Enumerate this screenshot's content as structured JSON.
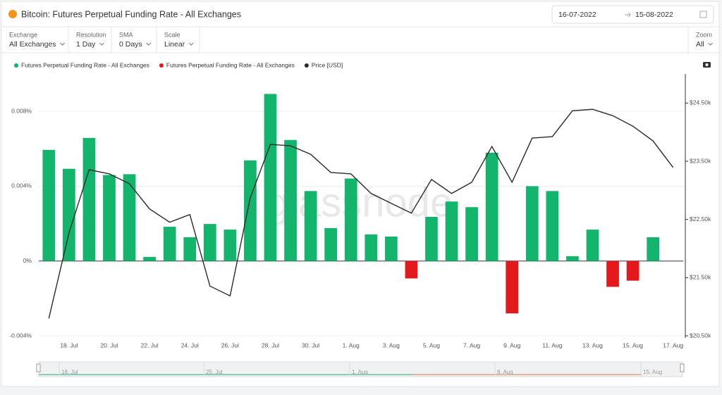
{
  "header": {
    "title": "Bitcoin: Futures Perpetual Funding Rate - All Exchanges",
    "date_from": "16-07-2022",
    "date_to": "15-08-2022"
  },
  "controls": [
    {
      "label": "Exchange",
      "value": "All Exchanges"
    },
    {
      "label": "Resolution",
      "value": "1 Day"
    },
    {
      "label": "SMA",
      "value": "0 Days"
    },
    {
      "label": "Scale",
      "value": "Linear"
    },
    {
      "label": "Zoom",
      "value": "All"
    }
  ],
  "watermark": "glassnode",
  "chart_data": {
    "type": "bar",
    "categories": [
      null,
      "18. Jul",
      null,
      "20. Jul",
      null,
      "22. Jul",
      null,
      "24. Jul",
      null,
      "26. Jul",
      null,
      "28. Jul",
      null,
      "30. Jul",
      null,
      "1. Aug",
      null,
      "3. Aug",
      null,
      "5. Aug",
      null,
      "7. Aug",
      null,
      "9. Aug",
      null,
      "11. Aug",
      null,
      "13. Aug",
      null,
      "15. Aug",
      null,
      "17. Aug"
    ],
    "series": [
      {
        "name": "Futures Perpetual Funding Rate - All Exchanges",
        "color": "#13b46c",
        "values": [
          0.00594,
          0.00493,
          0.00658,
          0.0046,
          0.00464,
          0.00022,
          0.00183,
          0.00127,
          0.00198,
          0.00168,
          0.00538,
          0.00893,
          0.00647,
          0.00374,
          0.00176,
          0.00441,
          0.00142,
          0.00131,
          null,
          0.00236,
          0.00318,
          0.00288,
          0.00579,
          null,
          0.004,
          0.00374,
          0.00026,
          0.00168,
          null,
          null,
          0.00127,
          null
        ]
      },
      {
        "name": "Futures Perpetual Funding Rate - All Exchanges",
        "color": "#e3191c",
        "values": [
          null,
          null,
          null,
          null,
          null,
          null,
          null,
          null,
          null,
          null,
          null,
          null,
          null,
          null,
          null,
          null,
          null,
          null,
          -0.00093,
          null,
          null,
          null,
          null,
          -0.0028,
          null,
          null,
          null,
          null,
          -0.00138,
          -0.00105,
          null,
          null
        ]
      },
      {
        "name": "Price [USD]",
        "color": "#2b2b2b",
        "type": "line",
        "axis": "y2",
        "values": [
          20800,
          22270,
          23355,
          23283,
          23114,
          22681,
          22452,
          22584,
          21355,
          21187,
          22873,
          23789,
          23765,
          23620,
          23307,
          23283,
          22946,
          22777,
          22608,
          23187,
          22946,
          23139,
          23753,
          23139,
          23898,
          23922,
          24367,
          24392,
          24283,
          24102,
          23849,
          23392
        ]
      }
    ],
    "ylim": [
      -0.004,
      0.01
    ],
    "yticks": [
      {
        "value": -0.004,
        "label": "-0.004%"
      },
      {
        "value": 0,
        "label": "0%"
      },
      {
        "value": 0.004,
        "label": "0.004%"
      },
      {
        "value": 0.008,
        "label": "0.008%"
      }
    ],
    "y2lim": [
      20500,
      25000
    ],
    "y2ticks": [
      {
        "value": 20500,
        "label": "$20.50k"
      },
      {
        "value": 21500,
        "label": "$21.50k"
      },
      {
        "value": 22500,
        "label": "$22.50k"
      },
      {
        "value": 23500,
        "label": "$23.50k"
      },
      {
        "value": 24500,
        "label": "$24.50k"
      }
    ],
    "grid": true
  },
  "navigator": {
    "labels": [
      "18. Jul",
      "25. Jul",
      "1. Aug",
      "8. Aug",
      "15. Aug"
    ]
  }
}
